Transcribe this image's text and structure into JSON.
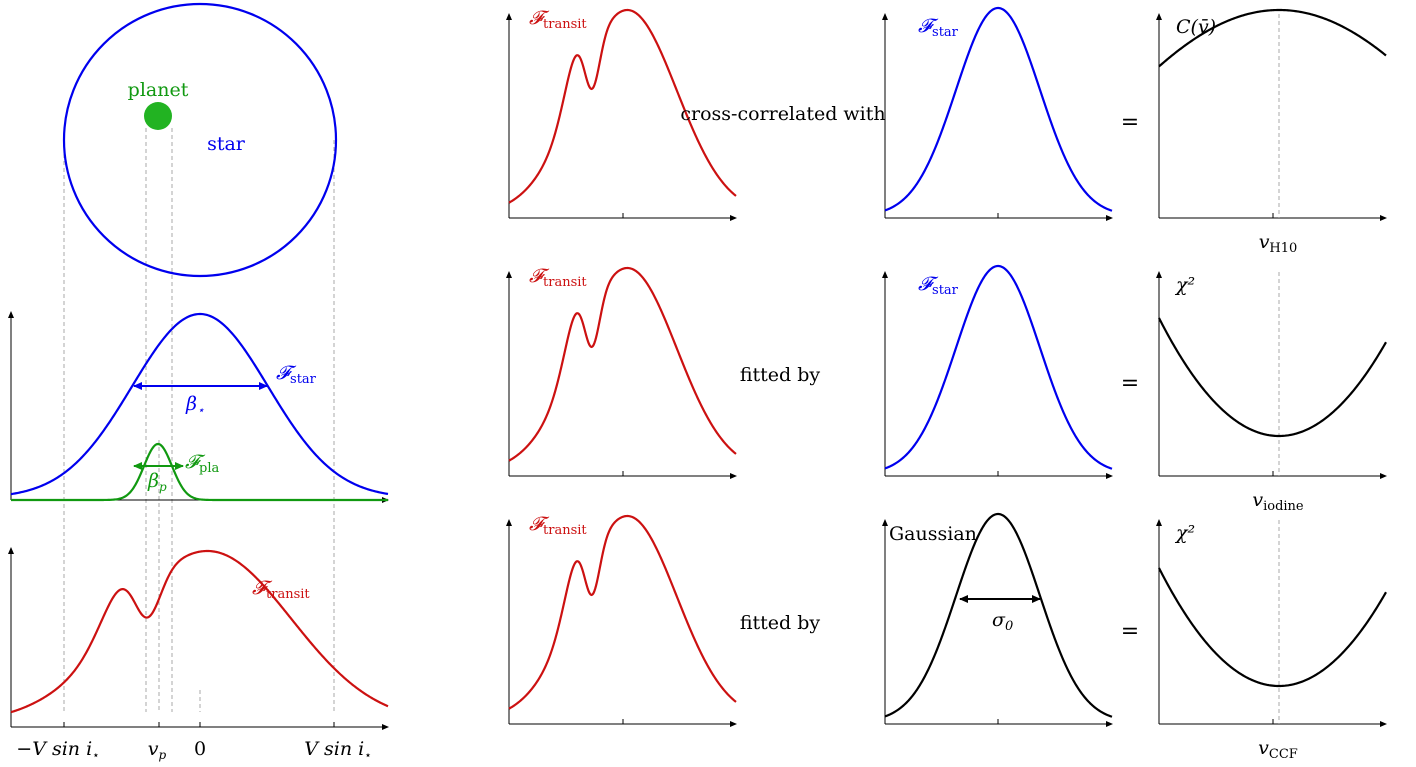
{
  "colors": {
    "star": "#0000ee",
    "planet": "#119911",
    "planet_disk": "#22b322",
    "transit": "#cc1111",
    "black": "#000000",
    "guide": "#aaaaaa"
  },
  "left_column": {
    "planet_label": "planet",
    "star_label": "star",
    "star_profile_label": {
      "main": "𝓕",
      "sub": "star"
    },
    "planet_profile_label": {
      "main": "𝓕",
      "sub": "pla"
    },
    "transit_profile_label": {
      "main": "𝓕",
      "sub": "transit"
    },
    "beta_star_label": {
      "main": "β",
      "sub": "⋆"
    },
    "beta_planet_label": {
      "main": "β",
      "sub": "p"
    },
    "axis_ticks": {
      "minus_vsini": "−V sin i",
      "minus_vsini_sub": "⋆",
      "vp": "v",
      "vp_sub": "p",
      "zero": "0",
      "plus_vsini": "V sin i",
      "plus_vsini_sub": "⋆"
    }
  },
  "rows": [
    {
      "operator": "cross-correlated with",
      "input_label": {
        "main": "𝓕",
        "sub": "transit"
      },
      "template_label": {
        "main": "𝓕",
        "sub": "star"
      },
      "equals": "=",
      "result_label": "C(v̄)",
      "result_axis_label": {
        "main": "v",
        "sub": "H10"
      }
    },
    {
      "operator": "fitted by",
      "input_label": {
        "main": "𝓕",
        "sub": "transit"
      },
      "template_label": {
        "main": "𝓕",
        "sub": "star"
      },
      "equals": "=",
      "result_label": "χ²",
      "result_axis_label": {
        "main": "v",
        "sub": "iodine"
      }
    },
    {
      "operator": "fitted by",
      "input_label": {
        "main": "𝓕",
        "sub": "transit"
      },
      "template_label": {
        "main": "Gaussian",
        "sub": ""
      },
      "sigma_label": {
        "main": "σ",
        "sub": "0"
      },
      "equals": "=",
      "result_label": "χ²",
      "result_axis_label": {
        "main": "v",
        "sub": "CCF"
      }
    }
  ]
}
